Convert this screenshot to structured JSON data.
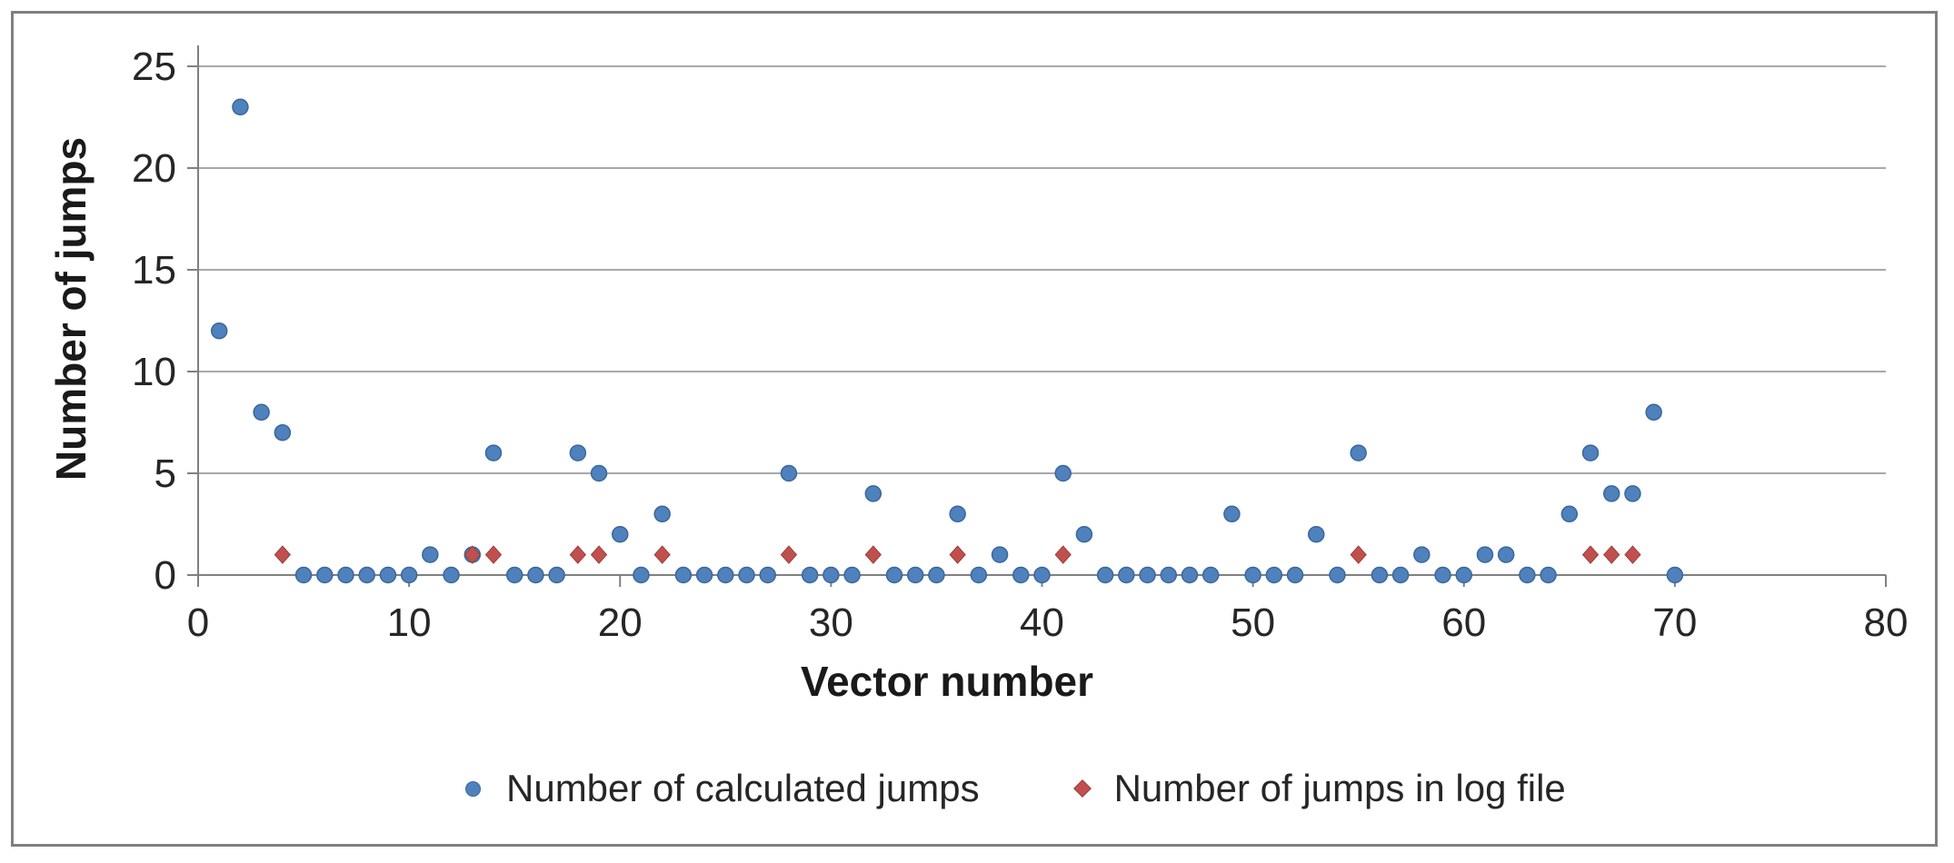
{
  "chart_data": {
    "type": "scatter",
    "title": "",
    "xlabel": "Vector number",
    "ylabel": "Number of jumps",
    "xlim": [
      0,
      80
    ],
    "ylim": [
      0,
      25
    ],
    "x_ticks": [
      0,
      10,
      20,
      30,
      40,
      50,
      60,
      70,
      80
    ],
    "y_ticks": [
      0,
      5,
      10,
      15,
      20,
      25
    ],
    "grid": "horizontal",
    "legend_position": "bottom",
    "series": [
      {
        "name": "Number of calculated jumps",
        "marker": "circle",
        "color": "#4F81BD",
        "edge_color": "#3A679C",
        "points": [
          [
            1,
            12
          ],
          [
            2,
            23
          ],
          [
            3,
            8
          ],
          [
            4,
            7
          ],
          [
            5,
            0
          ],
          [
            6,
            0
          ],
          [
            7,
            0
          ],
          [
            8,
            0
          ],
          [
            9,
            0
          ],
          [
            10,
            0
          ],
          [
            11,
            1
          ],
          [
            12,
            0
          ],
          [
            13,
            1
          ],
          [
            14,
            6
          ],
          [
            15,
            0
          ],
          [
            16,
            0
          ],
          [
            17,
            0
          ],
          [
            18,
            6
          ],
          [
            19,
            5
          ],
          [
            20,
            2
          ],
          [
            21,
            0
          ],
          [
            22,
            3
          ],
          [
            23,
            0
          ],
          [
            24,
            0
          ],
          [
            25,
            0
          ],
          [
            26,
            0
          ],
          [
            27,
            0
          ],
          [
            28,
            5
          ],
          [
            29,
            0
          ],
          [
            30,
            0
          ],
          [
            31,
            0
          ],
          [
            32,
            4
          ],
          [
            33,
            0
          ],
          [
            34,
            0
          ],
          [
            35,
            0
          ],
          [
            36,
            3
          ],
          [
            37,
            0
          ],
          [
            38,
            1
          ],
          [
            39,
            0
          ],
          [
            40,
            0
          ],
          [
            41,
            5
          ],
          [
            42,
            2
          ],
          [
            43,
            0
          ],
          [
            44,
            0
          ],
          [
            45,
            0
          ],
          [
            46,
            0
          ],
          [
            47,
            0
          ],
          [
            48,
            0
          ],
          [
            49,
            3
          ],
          [
            50,
            0
          ],
          [
            51,
            0
          ],
          [
            52,
            0
          ],
          [
            53,
            2
          ],
          [
            54,
            0
          ],
          [
            55,
            6
          ],
          [
            56,
            0
          ],
          [
            57,
            0
          ],
          [
            58,
            1
          ],
          [
            59,
            0
          ],
          [
            60,
            0
          ],
          [
            61,
            1
          ],
          [
            62,
            1
          ],
          [
            63,
            0
          ],
          [
            64,
            0
          ],
          [
            65,
            3
          ],
          [
            66,
            6
          ],
          [
            67,
            4
          ],
          [
            68,
            4
          ],
          [
            69,
            8
          ],
          [
            70,
            0
          ]
        ]
      },
      {
        "name": "Number of jumps in log file",
        "marker": "diamond",
        "color": "#C0504D",
        "edge_color": "#9C3D3B",
        "points": [
          [
            4,
            1
          ],
          [
            13,
            1
          ],
          [
            14,
            1
          ],
          [
            18,
            1
          ],
          [
            19,
            1
          ],
          [
            22,
            1
          ],
          [
            28,
            1
          ],
          [
            32,
            1
          ],
          [
            36,
            1
          ],
          [
            41,
            1
          ],
          [
            55,
            1
          ],
          [
            66,
            1
          ],
          [
            67,
            1
          ],
          [
            68,
            1
          ]
        ]
      }
    ],
    "colors": {
      "gridline": "#A8A8A8",
      "axis": "#808080",
      "frame_border": "#7F7F7F",
      "tick_text": "#262626",
      "background": "#FFFFFF"
    }
  }
}
